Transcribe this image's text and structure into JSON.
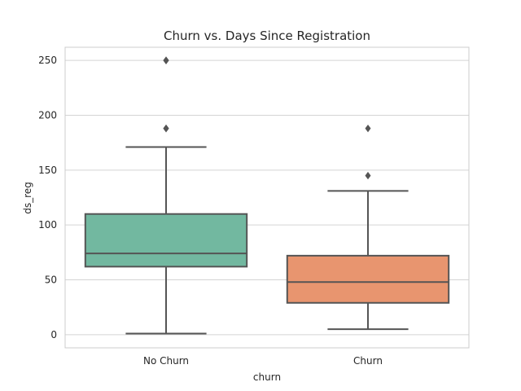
{
  "chart_data": {
    "type": "box",
    "title": "Churn vs. Days Since Registration",
    "xlabel": "churn",
    "ylabel": "ds_reg",
    "categories": [
      "No Churn",
      "Churn"
    ],
    "ylim": [
      -12,
      262
    ],
    "yticks": [
      0,
      50,
      100,
      150,
      200,
      250
    ],
    "grid": true,
    "boxes": [
      {
        "category": "No Churn",
        "color": "#72b8a0",
        "whisker_low": 1,
        "q1": 62,
        "median": 74,
        "q3": 110,
        "whisker_high": 171,
        "outliers": [
          188,
          188,
          188,
          250,
          250,
          250
        ]
      },
      {
        "category": "Churn",
        "color": "#e8956f",
        "whisker_low": 5,
        "q1": 29,
        "median": 48,
        "q3": 72,
        "whisker_high": 131,
        "outliers": [
          145,
          188
        ]
      }
    ]
  }
}
